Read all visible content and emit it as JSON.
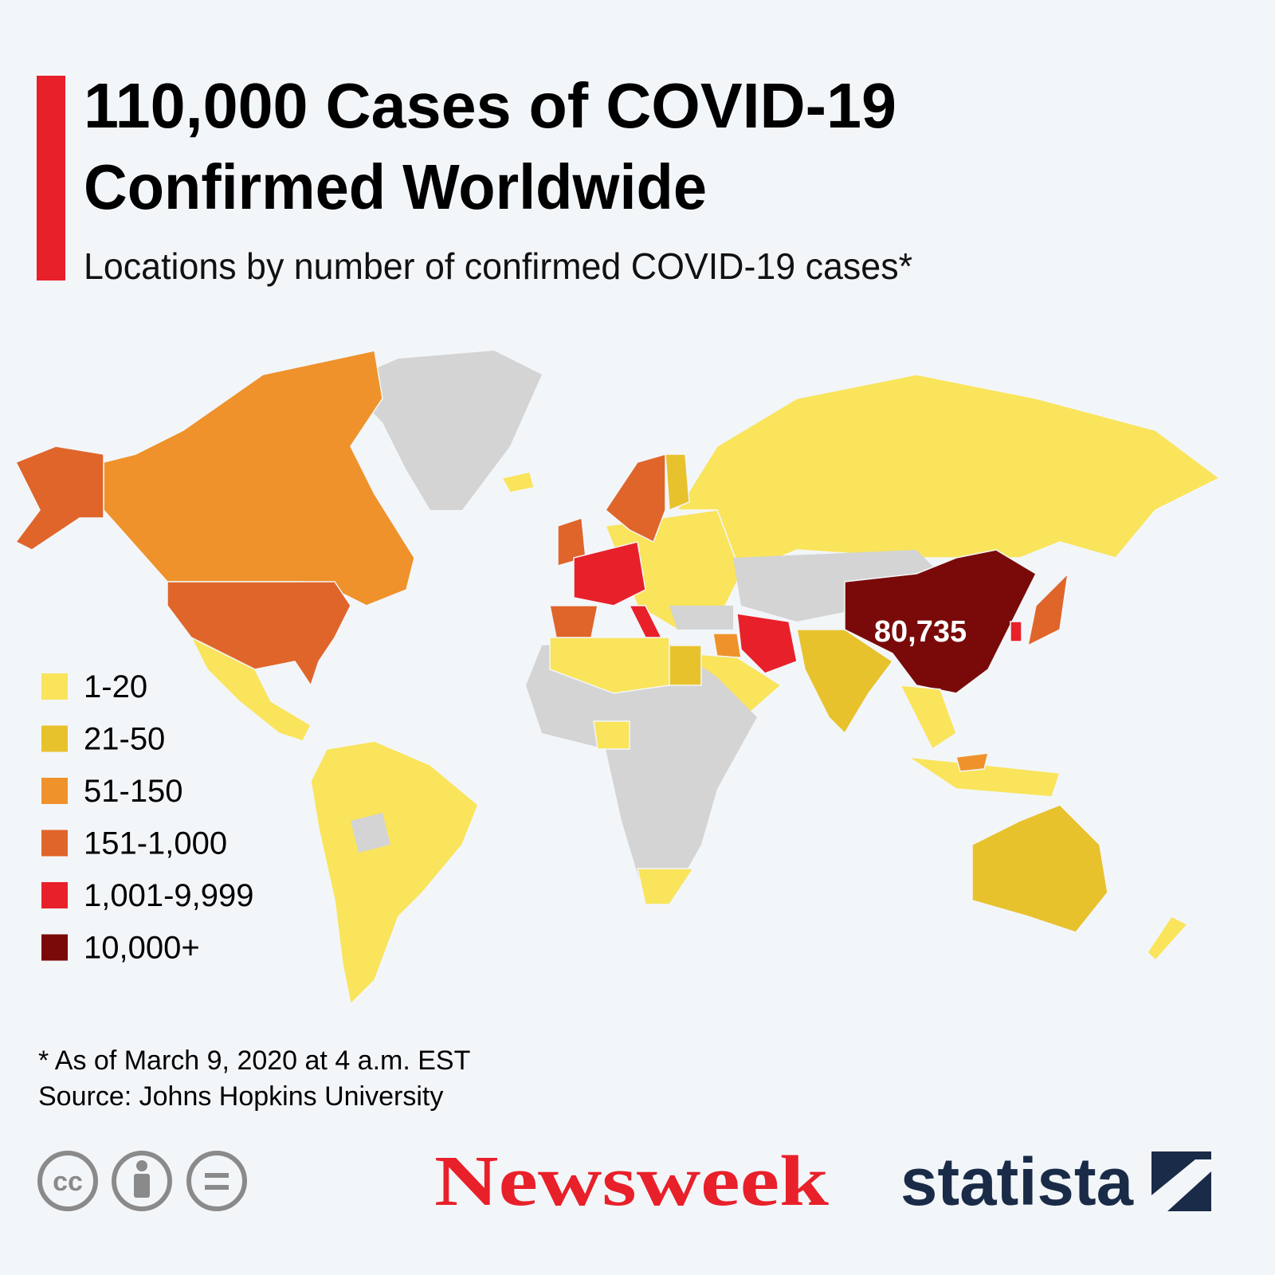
{
  "header": {
    "title_lines": [
      "110,000 Cases of COVID-19",
      "Confirmed Worldwide"
    ],
    "subtitle": "Locations by number of confirmed COVID-19 cases*"
  },
  "map": {
    "annotation": "80,735"
  },
  "legend": [
    {
      "label": "1-20",
      "color": "#f9e45c"
    },
    {
      "label": "21-50",
      "color": "#e8c22d"
    },
    {
      "label": "51-150",
      "color": "#ef922b"
    },
    {
      "label": "151-1,000",
      "color": "#e0652a"
    },
    {
      "label": "1,001-9,999",
      "color": "#e8202a"
    },
    {
      "label": "10,000+",
      "color": "#7a0a0a"
    }
  ],
  "footer": {
    "note": "* As of March 9, 2020 at 4 a.m. EST",
    "source": "Source: Johns Hopkins University",
    "cc_badge": "cc",
    "brand_newsweek": "Newsweek",
    "brand_statista": "statista"
  }
}
